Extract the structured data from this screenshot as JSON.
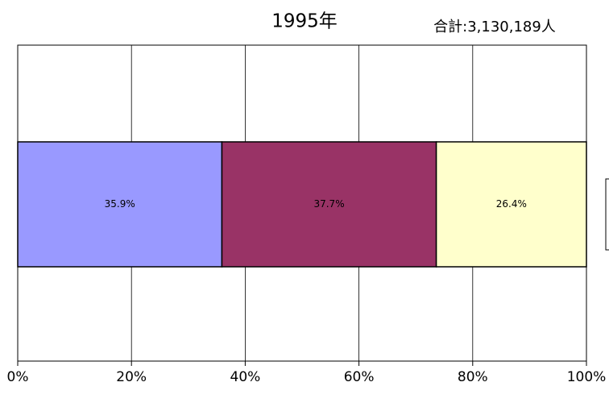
{
  "chart_data": {
    "type": "stacked_bar_horizontal",
    "title": "1995年",
    "subtitle": "合計:3,130,189人",
    "series": [
      {
        "color": "#9999ff",
        "values": [
          35.9
        ],
        "value_labels": [
          "35.9%"
        ]
      },
      {
        "color": "#993366",
        "values": [
          37.7
        ],
        "value_labels": [
          "37.7%"
        ]
      },
      {
        "color": "#ffffcc",
        "values": [
          26.4
        ],
        "value_labels": [
          "26.4%"
        ]
      }
    ],
    "xlim": [
      0,
      100
    ],
    "xticks": [
      {
        "value": 0,
        "label": "0%"
      },
      {
        "value": 20,
        "label": "20%"
      },
      {
        "value": 40,
        "label": "40%"
      },
      {
        "value": 60,
        "label": "60%"
      },
      {
        "value": 80,
        "label": "80%"
      },
      {
        "value": 100,
        "label": "100%"
      }
    ],
    "grid": true
  }
}
